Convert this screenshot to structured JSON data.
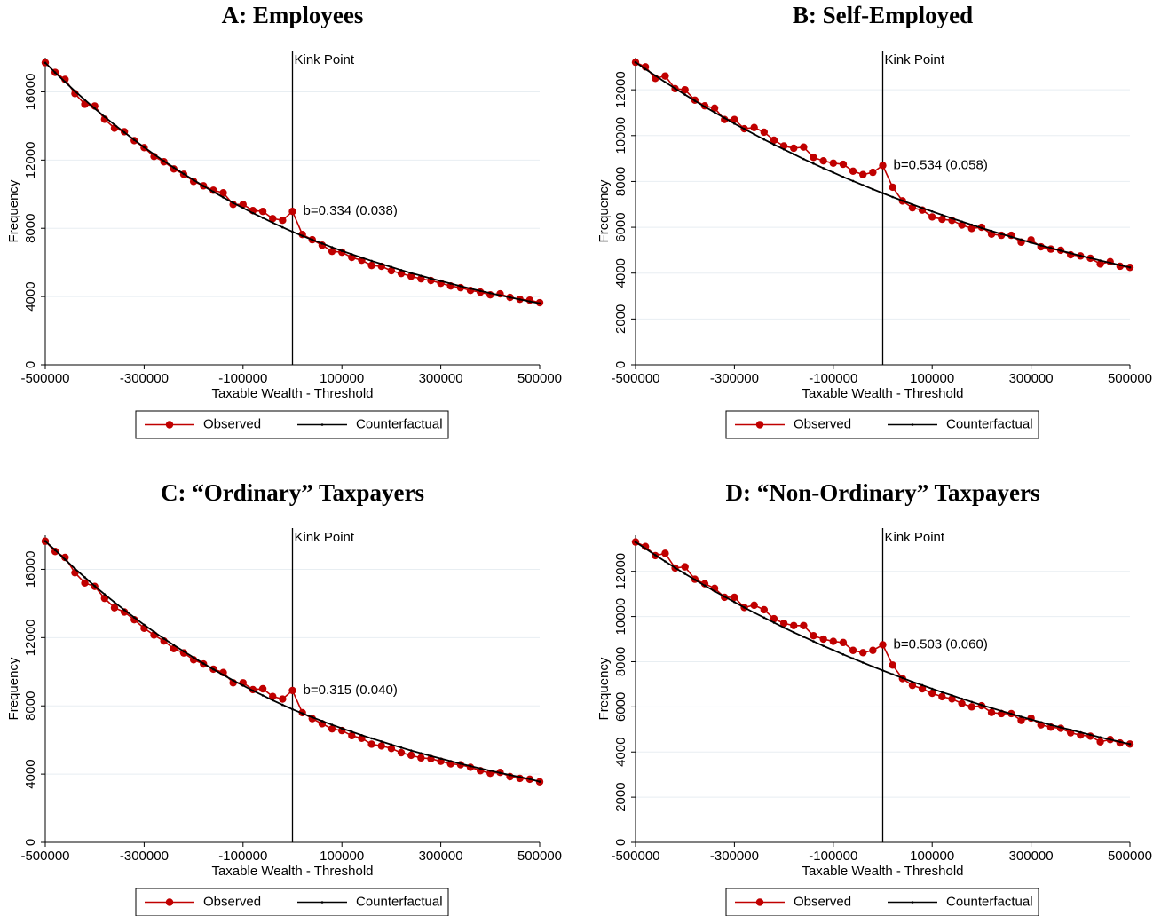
{
  "chart_data": [
    {
      "type": "line",
      "title": "A: Employees",
      "xlabel": "Taxable Wealth - Threshold",
      "ylabel": "Frequency",
      "x": [
        -500000,
        -480000,
        -460000,
        -440000,
        -420000,
        -400000,
        -380000,
        -360000,
        -340000,
        -320000,
        -300000,
        -280000,
        -260000,
        -240000,
        -220000,
        -200000,
        -180000,
        -160000,
        -140000,
        -120000,
        -100000,
        -80000,
        -60000,
        -40000,
        -20000,
        0,
        20000,
        40000,
        60000,
        80000,
        100000,
        120000,
        140000,
        160000,
        180000,
        200000,
        220000,
        240000,
        260000,
        280000,
        300000,
        320000,
        340000,
        360000,
        380000,
        400000,
        420000,
        440000,
        460000,
        480000,
        500000
      ],
      "series": [
        {
          "name": "Observed",
          "color": "#c00000",
          "marker": "circle",
          "values": [
            17710,
            17140,
            16730,
            15900,
            15270,
            15170,
            14390,
            13870,
            13660,
            13140,
            12730,
            12210,
            11900,
            11480,
            11170,
            10750,
            10490,
            10230,
            10080,
            9400,
            9400,
            9040,
            8990,
            8570,
            8470,
            8990,
            7640,
            7330,
            7010,
            6650,
            6600,
            6290,
            6130,
            5820,
            5770,
            5510,
            5350,
            5190,
            5040,
            4940,
            4780,
            4620,
            4520,
            4360,
            4260,
            4100,
            4160,
            3950,
            3840,
            3790,
            3640
          ]
        },
        {
          "name": "Counterfactual",
          "color": "#000000",
          "marker": "point",
          "values": [
            17700,
            17130,
            16580,
            16040,
            15530,
            15020,
            14540,
            14070,
            13620,
            13180,
            12750,
            12340,
            11940,
            11560,
            11190,
            10830,
            10480,
            10140,
            9810,
            9490,
            9190,
            8890,
            8610,
            8330,
            8060,
            7800,
            7560,
            7330,
            7110,
            6890,
            6680,
            6480,
            6280,
            6090,
            5910,
            5730,
            5550,
            5380,
            5220,
            5060,
            4910,
            4760,
            4610,
            4470,
            4330,
            4200,
            4070,
            3950,
            3830,
            3710,
            3600
          ]
        }
      ],
      "xlim": [
        -500000,
        500000
      ],
      "xticks": [
        -500000,
        -300000,
        -100000,
        100000,
        300000,
        500000
      ],
      "ylim": [
        0,
        18000
      ],
      "yticks": [
        0,
        4000,
        8000,
        12000,
        16000
      ],
      "grid": true,
      "legend": "bottom",
      "vline": {
        "value": 0,
        "label": "Kink Point"
      },
      "annotation": "b=0.334 (0.038)"
    },
    {
      "type": "line",
      "title": "B: Self-Employed",
      "xlabel": "Taxable Wealth - Threshold",
      "ylabel": "Frequency",
      "x": [
        -500000,
        -480000,
        -460000,
        -440000,
        -420000,
        -400000,
        -380000,
        -360000,
        -340000,
        -320000,
        -300000,
        -280000,
        -260000,
        -240000,
        -220000,
        -200000,
        -180000,
        -160000,
        -140000,
        -120000,
        -100000,
        -80000,
        -60000,
        -40000,
        -20000,
        0,
        20000,
        40000,
        60000,
        80000,
        100000,
        120000,
        140000,
        160000,
        180000,
        200000,
        220000,
        240000,
        260000,
        280000,
        300000,
        320000,
        340000,
        360000,
        380000,
        400000,
        420000,
        440000,
        460000,
        480000,
        500000
      ],
      "series": [
        {
          "name": "Observed",
          "color": "#c00000",
          "marker": "circle",
          "values": [
            13200,
            13000,
            12500,
            12600,
            12050,
            12000,
            11550,
            11300,
            11200,
            10700,
            10700,
            10300,
            10350,
            10150,
            9800,
            9550,
            9450,
            9500,
            9050,
            8900,
            8800,
            8750,
            8450,
            8300,
            8400,
            8700,
            7750,
            7150,
            6850,
            6750,
            6450,
            6350,
            6300,
            6100,
            5950,
            6000,
            5700,
            5650,
            5650,
            5350,
            5450,
            5150,
            5050,
            5000,
            4800,
            4750,
            4650,
            4400,
            4500,
            4300,
            4250
          ]
        },
        {
          "name": "Counterfactual",
          "color": "#000000",
          "marker": "point",
          "values": [
            13200,
            12900,
            12620,
            12330,
            12060,
            11790,
            11520,
            11260,
            11010,
            10770,
            10520,
            10290,
            10060,
            9830,
            9610,
            9400,
            9190,
            8980,
            8780,
            8580,
            8390,
            8200,
            8020,
            7840,
            7660,
            7490,
            7320,
            7160,
            7000,
            6840,
            6690,
            6540,
            6390,
            6250,
            6110,
            5970,
            5840,
            5710,
            5580,
            5460,
            5330,
            5210,
            5100,
            4980,
            4870,
            4760,
            4660,
            4550,
            4450,
            4350,
            4250
          ]
        }
      ],
      "xlim": [
        -500000,
        500000
      ],
      "xticks": [
        -500000,
        -300000,
        -100000,
        100000,
        300000,
        500000
      ],
      "ylim": [
        0,
        13400
      ],
      "yticks": [
        0,
        2000,
        4000,
        6000,
        8000,
        10000,
        12000
      ],
      "grid": true,
      "legend": "bottom",
      "vline": {
        "value": 0,
        "label": "Kink Point"
      },
      "annotation": "b=0.534 (0.058)"
    },
    {
      "type": "line",
      "title": "C: “Ordinary” Taxpayers",
      "xlabel": "Taxable Wealth - Threshold",
      "ylabel": "Frequency",
      "x": [
        -500000,
        -480000,
        -460000,
        -440000,
        -420000,
        -400000,
        -380000,
        -360000,
        -340000,
        -320000,
        -300000,
        -280000,
        -260000,
        -240000,
        -220000,
        -200000,
        -180000,
        -160000,
        -140000,
        -120000,
        -100000,
        -80000,
        -60000,
        -40000,
        -20000,
        0,
        20000,
        40000,
        60000,
        80000,
        100000,
        120000,
        140000,
        160000,
        180000,
        200000,
        220000,
        240000,
        260000,
        280000,
        300000,
        320000,
        340000,
        360000,
        380000,
        400000,
        420000,
        440000,
        460000,
        480000,
        500000
      ],
      "series": [
        {
          "name": "Observed",
          "color": "#c00000",
          "marker": "circle",
          "values": [
            17650,
            17050,
            16700,
            15800,
            15200,
            15000,
            14300,
            13750,
            13500,
            13050,
            12550,
            12150,
            11800,
            11350,
            11100,
            10700,
            10450,
            10150,
            9950,
            9350,
            9350,
            8950,
            9000,
            8550,
            8400,
            8900,
            7600,
            7250,
            6950,
            6650,
            6550,
            6250,
            6100,
            5750,
            5650,
            5500,
            5250,
            5100,
            4950,
            4900,
            4750,
            4600,
            4550,
            4400,
            4200,
            4050,
            4100,
            3850,
            3750,
            3700,
            3550
          ]
        },
        {
          "name": "Counterfactual",
          "color": "#000000",
          "marker": "point",
          "values": [
            17650,
            17130,
            16580,
            16040,
            15530,
            15020,
            14540,
            14070,
            13620,
            13180,
            12750,
            12340,
            11940,
            11560,
            11190,
            10830,
            10480,
            10140,
            9810,
            9490,
            9190,
            8890,
            8610,
            8330,
            8060,
            7800,
            7560,
            7330,
            7110,
            6890,
            6680,
            6480,
            6280,
            6090,
            5910,
            5730,
            5550,
            5380,
            5220,
            5060,
            4910,
            4760,
            4610,
            4470,
            4330,
            4200,
            4070,
            3950,
            3830,
            3710,
            3560
          ]
        }
      ],
      "xlim": [
        -500000,
        500000
      ],
      "xticks": [
        -500000,
        -300000,
        -100000,
        100000,
        300000,
        500000
      ],
      "ylim": [
        0,
        18000
      ],
      "yticks": [
        0,
        4000,
        8000,
        12000,
        16000
      ],
      "grid": true,
      "legend": "bottom",
      "vline": {
        "value": 0,
        "label": "Kink Point"
      },
      "annotation": "b=0.315 (0.040)"
    },
    {
      "type": "line",
      "title": "D: “Non-Ordinary” Taxpayers",
      "xlabel": "Taxable Wealth - Threshold",
      "ylabel": "Frequency",
      "x": [
        -500000,
        -480000,
        -460000,
        -440000,
        -420000,
        -400000,
        -380000,
        -360000,
        -340000,
        -320000,
        -300000,
        -280000,
        -260000,
        -240000,
        -220000,
        -200000,
        -180000,
        -160000,
        -140000,
        -120000,
        -100000,
        -80000,
        -60000,
        -40000,
        -20000,
        0,
        20000,
        40000,
        60000,
        80000,
        100000,
        120000,
        140000,
        160000,
        180000,
        200000,
        220000,
        240000,
        260000,
        280000,
        300000,
        320000,
        340000,
        360000,
        380000,
        400000,
        420000,
        440000,
        460000,
        480000,
        500000
      ],
      "series": [
        {
          "name": "Observed",
          "color": "#c00000",
          "marker": "circle",
          "values": [
            13300,
            13100,
            12700,
            12800,
            12150,
            12200,
            11650,
            11450,
            11250,
            10850,
            10850,
            10400,
            10500,
            10300,
            9900,
            9700,
            9600,
            9600,
            9150,
            9000,
            8900,
            8850,
            8500,
            8400,
            8500,
            8750,
            7850,
            7250,
            6950,
            6800,
            6600,
            6450,
            6350,
            6150,
            6000,
            6050,
            5750,
            5700,
            5700,
            5400,
            5500,
            5200,
            5100,
            5050,
            4850,
            4750,
            4700,
            4450,
            4550,
            4400,
            4350
          ]
        },
        {
          "name": "Counterfactual",
          "color": "#000000",
          "marker": "point",
          "values": [
            13300,
            13010,
            12720,
            12440,
            12160,
            11890,
            11630,
            11370,
            11120,
            10880,
            10640,
            10400,
            10170,
            9950,
            9730,
            9510,
            9300,
            9100,
            8900,
            8700,
            8510,
            8320,
            8140,
            7960,
            7780,
            7610,
            7440,
            7280,
            7110,
            6960,
            6800,
            6650,
            6510,
            6360,
            6220,
            6080,
            5950,
            5820,
            5690,
            5560,
            5440,
            5320,
            5200,
            5090,
            4980,
            4870,
            4760,
            4650,
            4550,
            4450,
            4350
          ]
        }
      ],
      "xlim": [
        -500000,
        500000
      ],
      "xticks": [
        -500000,
        -300000,
        -100000,
        100000,
        300000,
        500000
      ],
      "ylim": [
        0,
        13600
      ],
      "yticks": [
        0,
        2000,
        4000,
        6000,
        8000,
        10000,
        12000
      ],
      "grid": true,
      "legend": "bottom",
      "vline": {
        "value": 0,
        "label": "Kink Point"
      },
      "annotation": "b=0.503 (0.060)"
    }
  ]
}
